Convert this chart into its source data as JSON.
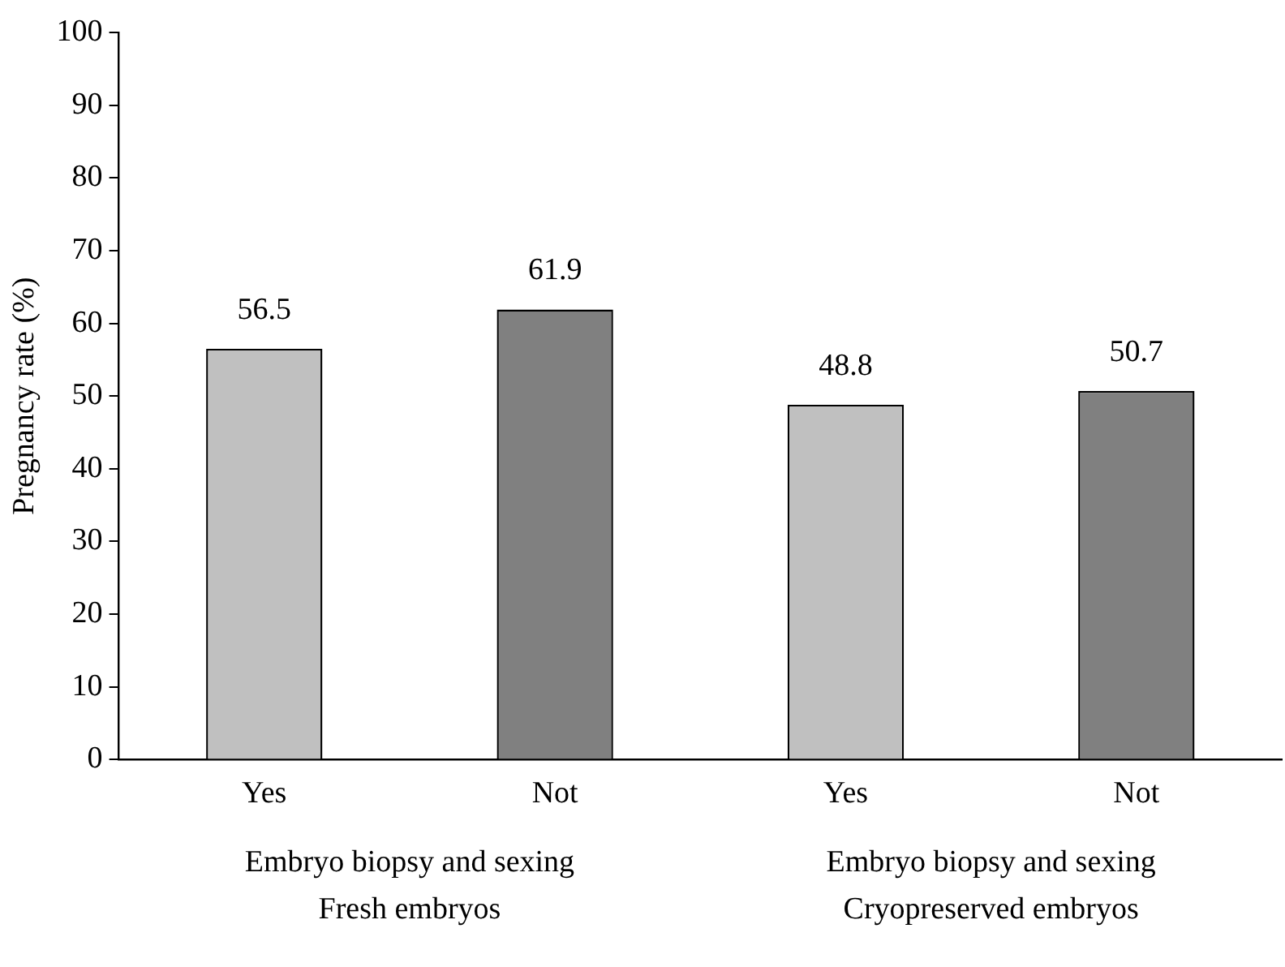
{
  "chart_data": {
    "type": "bar",
    "ylabel": "Pregnancy rate (%)",
    "categories": [
      "Yes",
      "Not",
      "Yes",
      "Not"
    ],
    "values": [
      56.5,
      61.9,
      48.8,
      50.7
    ],
    "colors": [
      "#c0c0c0",
      "#808080",
      "#c0c0c0",
      "#808080"
    ],
    "ylim": [
      0,
      100
    ],
    "yticks": [
      0,
      10,
      20,
      30,
      40,
      50,
      60,
      70,
      80,
      90,
      100
    ],
    "grid": false,
    "legend": false,
    "data_labels": true,
    "annotations": [
      "Embryo biopsy and sexing",
      "Fresh embryos",
      "Embryo biopsy and sexing",
      "Cryopreserved embryos"
    ]
  }
}
